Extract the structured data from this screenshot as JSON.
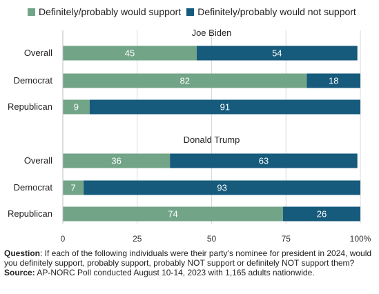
{
  "legend": {
    "support_label": "Definitely/probably would support",
    "not_support_label": "Definitely/probably would not support"
  },
  "colors": {
    "support": "#72a488",
    "not_support": "#165a7c",
    "grid": "#d9d9d9"
  },
  "notes": {
    "question_label": "Question",
    "question_text": ": If each of the following individuals were their party’s nominee for president in 2024, would you definitely support, probably support, probably NOT support or definitely NOT support them?",
    "source_label": "Source:",
    "source_text": " AP-NORC Poll conducted August 10-14, 2023 with 1,165 adults nationwide."
  },
  "chart_data": {
    "type": "bar",
    "orientation": "horizontal",
    "stacked": true,
    "xlim": [
      0,
      100
    ],
    "xticks": [
      "0",
      "25",
      "50",
      "75",
      "100%"
    ],
    "grid": true,
    "legend_position": "top",
    "panels": [
      {
        "title": "Joe Biden",
        "categories": [
          "Overall",
          "Democrat",
          "Republican"
        ],
        "series": [
          {
            "name": "Definitely/probably would support",
            "values": [
              45,
              82,
              9
            ]
          },
          {
            "name": "Definitely/probably would not support",
            "values": [
              54,
              18,
              91
            ]
          }
        ]
      },
      {
        "title": "Donald Trump",
        "categories": [
          "Overall",
          "Democrat",
          "Republican"
        ],
        "series": [
          {
            "name": "Definitely/probably would support",
            "values": [
              36,
              7,
              74
            ]
          },
          {
            "name": "Definitely/probably would not support",
            "values": [
              63,
              93,
              26
            ]
          }
        ]
      }
    ]
  }
}
